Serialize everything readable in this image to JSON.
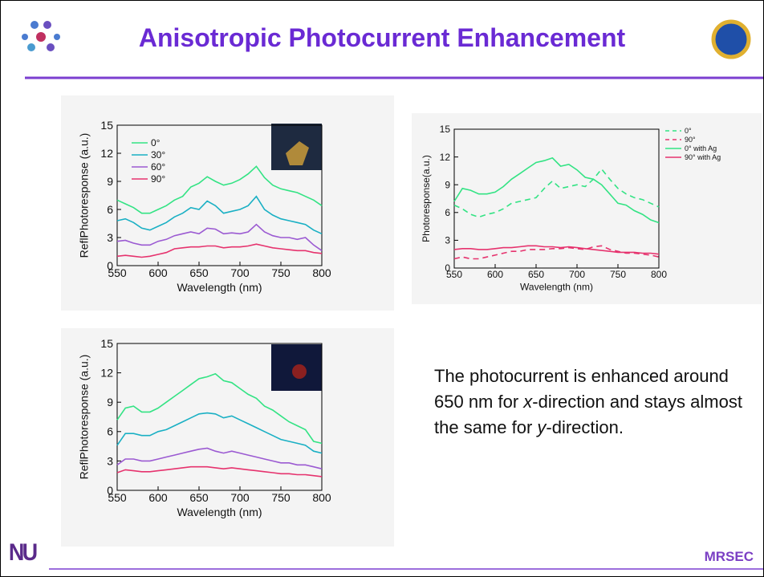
{
  "title": "Anisotropic Photocurrent Enhancement",
  "body_text": [
    "The photocurrent is enhanced around 650 nm for ",
    "x",
    "-direction and stays almost the same for ",
    "y",
    "-direction."
  ],
  "logo": "NU",
  "footer": "MRSEC",
  "chart_data": [
    {
      "type": "line",
      "xlabel": "Wavelength (nm)",
      "ylabel": "ReflPhotoresponse (a.u.)",
      "x": [
        550,
        560,
        570,
        580,
        590,
        600,
        610,
        620,
        630,
        640,
        650,
        660,
        670,
        680,
        690,
        700,
        710,
        720,
        730,
        740,
        750,
        760,
        770,
        780,
        790,
        800
      ],
      "xlim": [
        550,
        800
      ],
      "xticks": [
        550,
        600,
        650,
        700,
        750,
        800
      ],
      "ylim": [
        0,
        15
      ],
      "yticks": [
        0,
        3,
        6,
        9,
        12,
        15
      ],
      "legend": "upper left",
      "series": [
        {
          "name": "0°",
          "color": "#33e384",
          "linestyle": "solid",
          "values": [
            7,
            6.6,
            6.2,
            5.6,
            5.6,
            6.0,
            6.4,
            7.0,
            7.4,
            8.4,
            8.8,
            9.5,
            9.0,
            8.6,
            8.8,
            9.2,
            9.8,
            10.6,
            9.4,
            8.6,
            8.2,
            8.0,
            7.8,
            7.4,
            7.0,
            6.4
          ]
        },
        {
          "name": "30°",
          "color": "#1ab0c4",
          "linestyle": "solid",
          "values": [
            4.8,
            5.0,
            4.6,
            4.0,
            3.8,
            4.2,
            4.6,
            5.2,
            5.6,
            6.2,
            6.0,
            6.9,
            6.4,
            5.6,
            5.8,
            6.0,
            6.4,
            7.4,
            6.0,
            5.4,
            5.0,
            4.8,
            4.6,
            4.4,
            3.8,
            3.4
          ]
        },
        {
          "name": "60°",
          "color": "#9b5ad2",
          "linestyle": "solid",
          "values": [
            2.6,
            2.7,
            2.4,
            2.2,
            2.2,
            2.6,
            2.8,
            3.2,
            3.4,
            3.6,
            3.4,
            4.0,
            3.9,
            3.4,
            3.5,
            3.4,
            3.6,
            4.4,
            3.6,
            3.2,
            3.0,
            3.0,
            2.8,
            3.0,
            2.2,
            1.6
          ]
        },
        {
          "name": "90°",
          "color": "#e6336e",
          "linestyle": "solid",
          "values": [
            1.0,
            1.1,
            1.0,
            0.9,
            1.0,
            1.2,
            1.4,
            1.8,
            1.9,
            2.0,
            2.0,
            2.1,
            2.1,
            1.9,
            2.0,
            2.0,
            2.1,
            2.3,
            2.1,
            1.9,
            1.8,
            1.7,
            1.6,
            1.6,
            1.4,
            1.3
          ]
        }
      ]
    },
    {
      "type": "line",
      "xlabel": "Wavelength (nm)",
      "ylabel": "Photoresponse(a.u.)",
      "x": [
        550,
        560,
        570,
        580,
        590,
        600,
        610,
        620,
        630,
        640,
        650,
        660,
        670,
        680,
        690,
        700,
        710,
        720,
        730,
        740,
        750,
        760,
        770,
        780,
        790,
        800
      ],
      "xlim": [
        550,
        800
      ],
      "xticks": [
        550,
        600,
        650,
        700,
        750,
        800
      ],
      "ylim": [
        0,
        15
      ],
      "yticks": [
        0,
        3,
        6,
        9,
        12,
        15
      ],
      "legend": "outside right",
      "series": [
        {
          "name": "0°",
          "color": "#33e384",
          "linestyle": "dashed",
          "values": [
            6.8,
            6.4,
            5.8,
            5.5,
            5.8,
            6.0,
            6.4,
            7.0,
            7.2,
            7.4,
            7.6,
            8.6,
            9.4,
            8.6,
            8.8,
            9.0,
            8.8,
            9.6,
            10.7,
            9.6,
            8.6,
            8.0,
            7.6,
            7.4,
            7.0,
            6.6
          ]
        },
        {
          "name": "90°",
          "color": "#e6336e",
          "linestyle": "dashed",
          "values": [
            1.0,
            1.2,
            1.0,
            1.0,
            1.2,
            1.4,
            1.6,
            1.8,
            1.8,
            2.0,
            2.0,
            2.0,
            2.1,
            2.1,
            2.2,
            2.1,
            2.0,
            2.3,
            2.4,
            2.0,
            1.8,
            1.6,
            1.6,
            1.5,
            1.4,
            1.2
          ]
        },
        {
          "name": "0° with Ag",
          "color": "#33e384",
          "linestyle": "solid",
          "values": [
            7.2,
            8.6,
            8.4,
            8.0,
            8.0,
            8.2,
            8.8,
            9.6,
            10.2,
            10.8,
            11.4,
            11.6,
            11.9,
            11.0,
            11.2,
            10.6,
            9.8,
            9.6,
            9.0,
            8.0,
            7.0,
            6.8,
            6.2,
            5.8,
            5.2,
            4.9
          ]
        },
        {
          "name": "90° with Ag",
          "color": "#e6336e",
          "linestyle": "solid",
          "values": [
            2.0,
            2.1,
            2.1,
            2.0,
            2.0,
            2.1,
            2.2,
            2.2,
            2.3,
            2.4,
            2.4,
            2.3,
            2.3,
            2.2,
            2.3,
            2.2,
            2.1,
            2.0,
            1.9,
            1.8,
            1.7,
            1.7,
            1.7,
            1.6,
            1.6,
            1.5
          ]
        }
      ]
    },
    {
      "type": "line",
      "xlabel": "Wavelength (nm)",
      "ylabel": "ReflPhotoresponse (a.u.)",
      "x": [
        550,
        560,
        570,
        580,
        590,
        600,
        610,
        620,
        630,
        640,
        650,
        660,
        670,
        680,
        690,
        700,
        710,
        720,
        730,
        740,
        750,
        760,
        770,
        780,
        790,
        800
      ],
      "xlim": [
        550,
        800
      ],
      "xticks": [
        550,
        600,
        650,
        700,
        750,
        800
      ],
      "ylim": [
        0,
        15
      ],
      "yticks": [
        0,
        3,
        6,
        9,
        12,
        15
      ],
      "series": [
        {
          "color": "#33e384",
          "linestyle": "solid",
          "values": [
            7.2,
            8.4,
            8.6,
            8.0,
            8.0,
            8.4,
            9.0,
            9.6,
            10.2,
            10.8,
            11.4,
            11.6,
            11.9,
            11.2,
            11.0,
            10.4,
            9.8,
            9.4,
            8.6,
            8.2,
            7.6,
            7.0,
            6.6,
            6.2,
            5.0,
            4.8
          ]
        },
        {
          "color": "#1ab0c4",
          "linestyle": "solid",
          "values": [
            4.6,
            5.8,
            5.8,
            5.6,
            5.6,
            6.0,
            6.2,
            6.6,
            7.0,
            7.4,
            7.8,
            7.9,
            7.8,
            7.4,
            7.6,
            7.2,
            6.8,
            6.4,
            6.0,
            5.6,
            5.2,
            5.0,
            4.8,
            4.6,
            4.0,
            3.8
          ]
        },
        {
          "color": "#9b5ad2",
          "linestyle": "solid",
          "values": [
            2.6,
            3.2,
            3.2,
            3.0,
            3.0,
            3.2,
            3.4,
            3.6,
            3.8,
            4.0,
            4.2,
            4.3,
            4.0,
            3.8,
            4.0,
            3.8,
            3.6,
            3.4,
            3.2,
            3.0,
            2.8,
            2.8,
            2.6,
            2.6,
            2.4,
            2.2
          ]
        },
        {
          "color": "#e6336e",
          "linestyle": "solid",
          "values": [
            1.8,
            2.1,
            2.0,
            1.9,
            1.9,
            2.0,
            2.1,
            2.2,
            2.3,
            2.4,
            2.4,
            2.4,
            2.3,
            2.2,
            2.3,
            2.2,
            2.1,
            2.0,
            1.9,
            1.8,
            1.7,
            1.7,
            1.6,
            1.6,
            1.5,
            1.4
          ]
        }
      ]
    }
  ]
}
